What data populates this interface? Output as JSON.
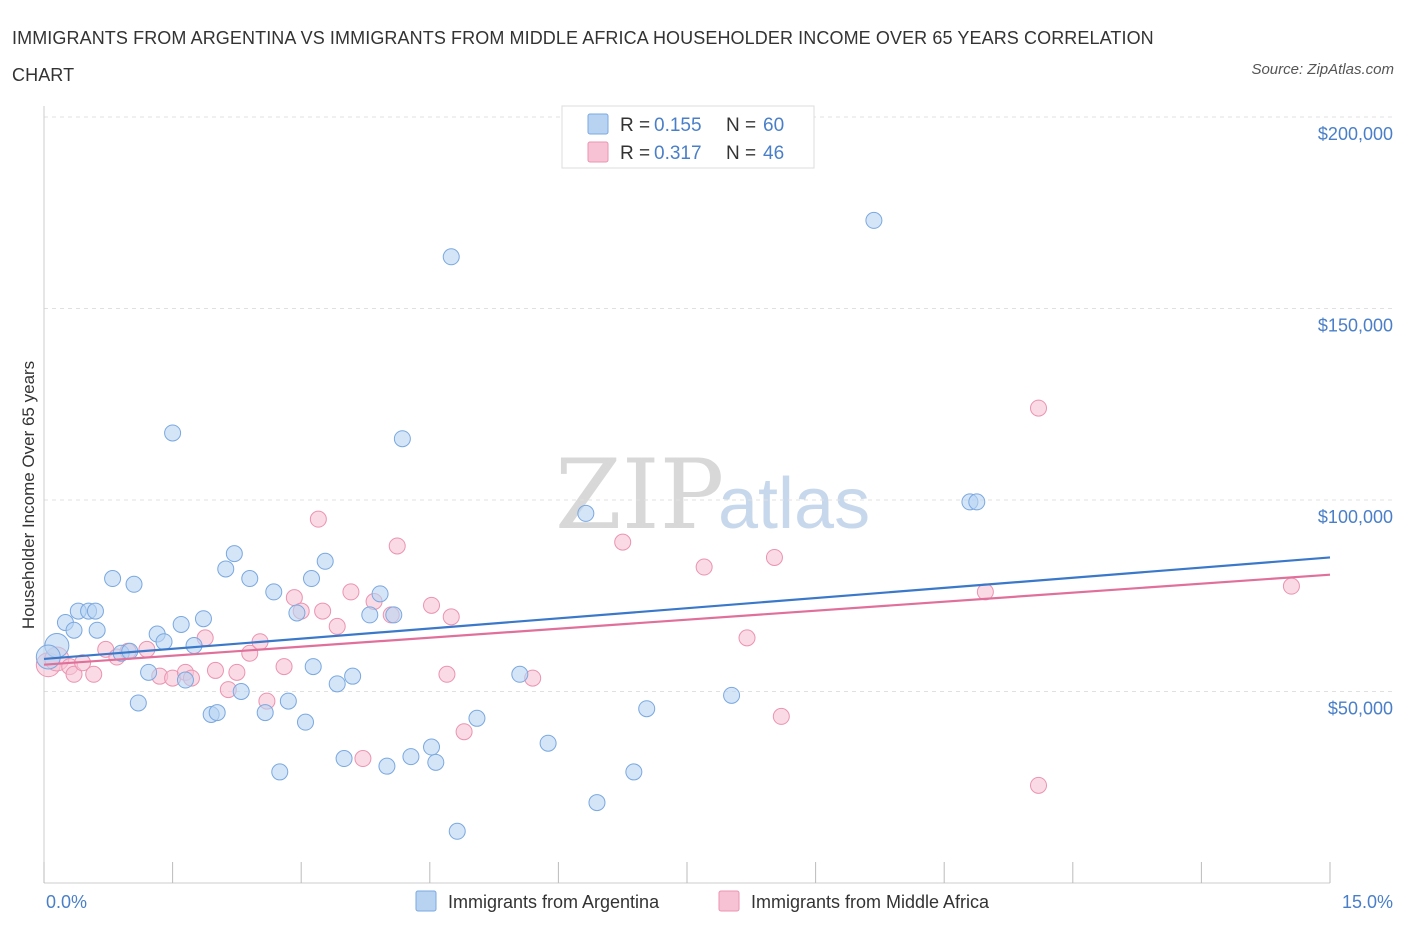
{
  "title": "IMMIGRANTS FROM ARGENTINA VS IMMIGRANTS FROM MIDDLE AFRICA HOUSEHOLDER INCOME OVER 65 YEARS CORRELATION CHART",
  "source": "Source: ZipAtlas.com",
  "watermark": {
    "zip": "ZIP",
    "atlas": "atlas"
  },
  "legend": {
    "argentina": {
      "r_label": "R = ",
      "r_value": "0.155",
      "n_label": "N = ",
      "n_value": "60"
    },
    "middle_africa": {
      "r_label": "R = ",
      "r_value": "0.317",
      "n_label": "N = ",
      "n_value": "46"
    }
  },
  "colors": {
    "argentina_fill": "#b8d3f2",
    "argentina_stroke": "#7aa8e0",
    "argentina_line": "#3a78c9",
    "africa_fill": "#f7c3d4",
    "africa_stroke": "#eb93b0",
    "africa_line": "#e0709a",
    "grid": "#e0e0e0",
    "axis_label": "#4a7fc8"
  },
  "chart_data": {
    "type": "scatter",
    "title": "IMMIGRANTS FROM ARGENTINA VS IMMIGRANTS FROM MIDDLE AFRICA HOUSEHOLDER INCOME OVER 65 YEARS CORRELATION CHART",
    "xlabel": "",
    "ylabel": "Householder Income Over 65 years",
    "xlim": [
      0,
      15
    ],
    "ylim": [
      0,
      200000
    ],
    "x_tick_labels": [
      "0.0%",
      "15.0%"
    ],
    "y_ticks": [
      50000,
      100000,
      150000,
      200000
    ],
    "y_tick_labels": [
      "$50,000",
      "$100,000",
      "$150,000",
      "$200,000"
    ],
    "series": [
      {
        "name": "Immigrants from Argentina",
        "trend": [
          [
            0,
            58500
          ],
          [
            15,
            85000
          ]
        ],
        "points": [
          [
            0.15,
            62000
          ],
          [
            0.05,
            59000
          ],
          [
            0.25,
            68000
          ],
          [
            0.35,
            66000
          ],
          [
            0.4,
            71000
          ],
          [
            0.52,
            71000
          ],
          [
            0.6,
            71000
          ],
          [
            0.62,
            66000
          ],
          [
            0.8,
            79500
          ],
          [
            0.9,
            60000
          ],
          [
            1.0,
            60500
          ],
          [
            1.05,
            78000
          ],
          [
            1.1,
            47000
          ],
          [
            1.22,
            55000
          ],
          [
            1.32,
            65000
          ],
          [
            1.4,
            63000
          ],
          [
            1.5,
            117500
          ],
          [
            1.6,
            67500
          ],
          [
            1.65,
            53000
          ],
          [
            1.75,
            62000
          ],
          [
            1.86,
            69000
          ],
          [
            1.95,
            44000
          ],
          [
            2.02,
            44500
          ],
          [
            2.12,
            82000
          ],
          [
            2.22,
            86000
          ],
          [
            2.3,
            50000
          ],
          [
            2.4,
            79500
          ],
          [
            2.58,
            44500
          ],
          [
            2.68,
            76000
          ],
          [
            2.75,
            29000
          ],
          [
            2.85,
            47500
          ],
          [
            2.95,
            70500
          ],
          [
            3.05,
            42000
          ],
          [
            3.12,
            79500
          ],
          [
            3.14,
            56500
          ],
          [
            3.28,
            84000
          ],
          [
            3.42,
            52000
          ],
          [
            3.5,
            32500
          ],
          [
            3.6,
            54000
          ],
          [
            3.8,
            70000
          ],
          [
            3.92,
            75500
          ],
          [
            4.0,
            30500
          ],
          [
            4.08,
            70000
          ],
          [
            4.18,
            116000
          ],
          [
            4.28,
            33000
          ],
          [
            4.52,
            35500
          ],
          [
            4.57,
            31500
          ],
          [
            4.75,
            163500
          ],
          [
            4.82,
            13500
          ],
          [
            5.05,
            43000
          ],
          [
            5.55,
            54500
          ],
          [
            5.88,
            36500
          ],
          [
            6.32,
            96500
          ],
          [
            6.45,
            21000
          ],
          [
            6.88,
            29000
          ],
          [
            7.03,
            45500
          ],
          [
            8.02,
            49000
          ],
          [
            9.68,
            173000
          ],
          [
            10.8,
            99500
          ],
          [
            10.88,
            99500
          ]
        ]
      },
      {
        "name": "Immigrants from Middle Africa",
        "trend": [
          [
            0,
            57000
          ],
          [
            15,
            80500
          ]
        ],
        "points": [
          [
            0.05,
            57000
          ],
          [
            0.15,
            58500
          ],
          [
            0.3,
            56500
          ],
          [
            0.35,
            54500
          ],
          [
            0.45,
            57500
          ],
          [
            0.58,
            54500
          ],
          [
            0.72,
            61000
          ],
          [
            0.85,
            59000
          ],
          [
            0.98,
            60500
          ],
          [
            1.2,
            61000
          ],
          [
            1.35,
            54000
          ],
          [
            1.5,
            53500
          ],
          [
            1.65,
            55000
          ],
          [
            1.72,
            53500
          ],
          [
            1.88,
            64000
          ],
          [
            2.0,
            55500
          ],
          [
            2.15,
            50500
          ],
          [
            2.25,
            55000
          ],
          [
            2.4,
            60000
          ],
          [
            2.52,
            63000
          ],
          [
            2.6,
            47500
          ],
          [
            2.8,
            56500
          ],
          [
            2.92,
            74500
          ],
          [
            3.0,
            71000
          ],
          [
            3.2,
            95000
          ],
          [
            3.25,
            71000
          ],
          [
            3.42,
            67000
          ],
          [
            3.58,
            76000
          ],
          [
            3.72,
            32500
          ],
          [
            3.85,
            73500
          ],
          [
            4.05,
            70000
          ],
          [
            4.12,
            88000
          ],
          [
            4.52,
            72500
          ],
          [
            4.7,
            54500
          ],
          [
            4.75,
            69500
          ],
          [
            4.9,
            39500
          ],
          [
            5.7,
            53500
          ],
          [
            6.75,
            89000
          ],
          [
            7.7,
            82500
          ],
          [
            8.2,
            64000
          ],
          [
            8.52,
            85000
          ],
          [
            8.6,
            43500
          ],
          [
            10.98,
            76000
          ],
          [
            11.6,
            124000
          ],
          [
            11.6,
            25500
          ],
          [
            14.55,
            77500
          ]
        ]
      }
    ]
  },
  "bottom_legend": {
    "argentina": "Immigrants from Argentina",
    "middle_africa": "Immigrants from Middle Africa"
  }
}
